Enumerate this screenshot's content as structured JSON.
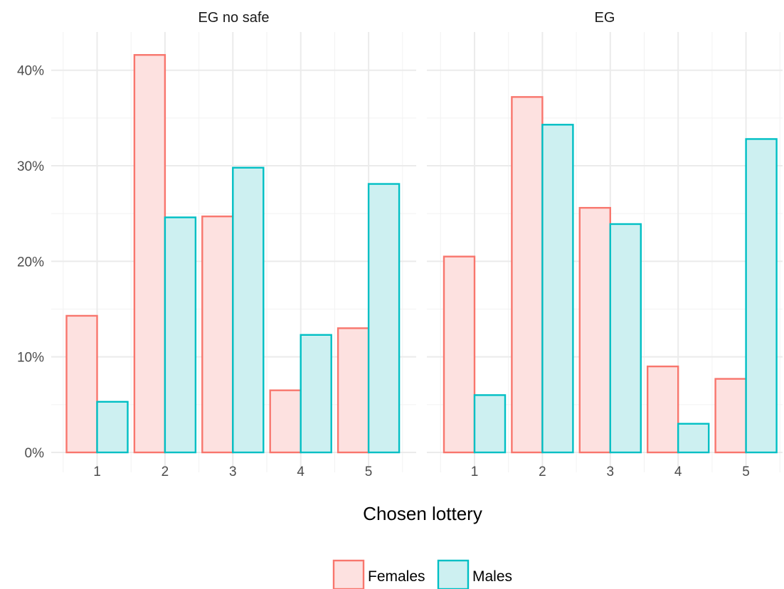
{
  "chart_data": {
    "type": "bar",
    "xlabel": "Chosen lottery",
    "ylabel": "",
    "categories": [
      "1",
      "2",
      "3",
      "4",
      "5"
    ],
    "ylim": [
      0,
      44
    ],
    "yticks": [
      0,
      10,
      20,
      30,
      40
    ],
    "ytick_labels": [
      "0%",
      "10%",
      "20%",
      "30%",
      "40%"
    ],
    "grid": true,
    "legend_position": "bottom",
    "panels": [
      {
        "title": "EG no safe",
        "series": [
          {
            "name": "Females",
            "values": [
              14.3,
              41.6,
              24.7,
              6.5,
              13.0
            ]
          },
          {
            "name": "Males",
            "values": [
              5.3,
              24.6,
              29.8,
              12.3,
              28.1
            ]
          }
        ]
      },
      {
        "title": "EG",
        "series": [
          {
            "name": "Females",
            "values": [
              20.5,
              37.2,
              25.6,
              9.0,
              7.7
            ]
          },
          {
            "name": "Males",
            "values": [
              6.0,
              34.3,
              23.9,
              3.0,
              32.8
            ]
          }
        ]
      }
    ],
    "legend": [
      {
        "name": "Females",
        "stroke": "#F8766D",
        "fill": "#FDE1E0"
      },
      {
        "name": "Males",
        "stroke": "#00BFC4",
        "fill": "#CDF0F1"
      }
    ]
  }
}
